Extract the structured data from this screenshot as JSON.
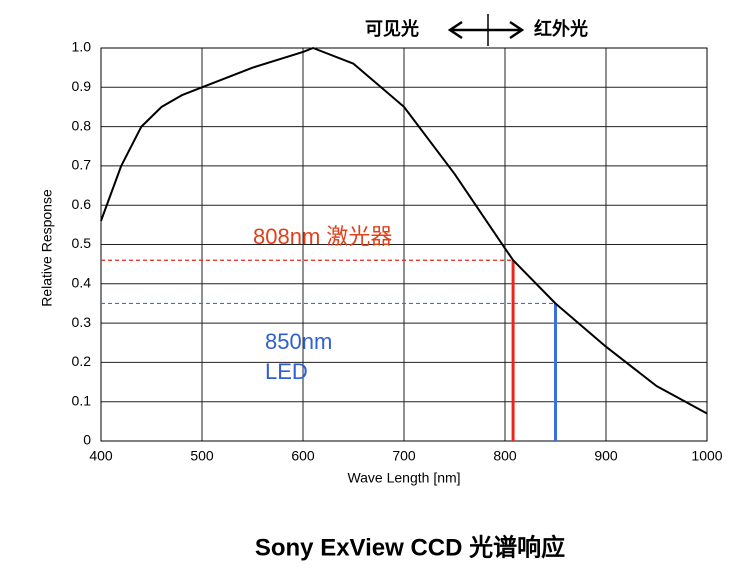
{
  "chart_data": {
    "type": "line",
    "title": "Sony ExView CCD 光谱响应",
    "xlabel": "Wave Length [nm]",
    "ylabel": "Relative Response",
    "top_labels": [
      "可见光",
      "红外光"
    ],
    "x": [
      400,
      420,
      440,
      460,
      480,
      500,
      550,
      600,
      610,
      650,
      700,
      750,
      800,
      808,
      850,
      900,
      950,
      1000
    ],
    "values": [
      0.56,
      0.7,
      0.8,
      0.85,
      0.88,
      0.9,
      0.95,
      0.99,
      1.0,
      0.96,
      0.85,
      0.68,
      0.49,
      0.46,
      0.35,
      0.24,
      0.14,
      0.07
    ],
    "color": "#000000",
    "xlim": [
      400,
      1000
    ],
    "ylim": [
      0,
      1
    ],
    "xticks": [
      400,
      500,
      600,
      700,
      800,
      900,
      1000
    ],
    "yticks": [
      0,
      0.1,
      0.2,
      0.3,
      0.4,
      0.5,
      0.6,
      0.7,
      0.8,
      0.9,
      {
        "value": 1,
        "label": "1.0"
      }
    ],
    "grid": true,
    "markers": [
      {
        "label": "808nm 激光器",
        "x": 808,
        "y": 0.46,
        "color": "#e8261e",
        "text_color": "#e0401a"
      },
      {
        "label": "850nm LED",
        "x": 850,
        "y": 0.35,
        "color": "#3a6fe0",
        "text_color": "#2f5fd0"
      }
    ]
  }
}
